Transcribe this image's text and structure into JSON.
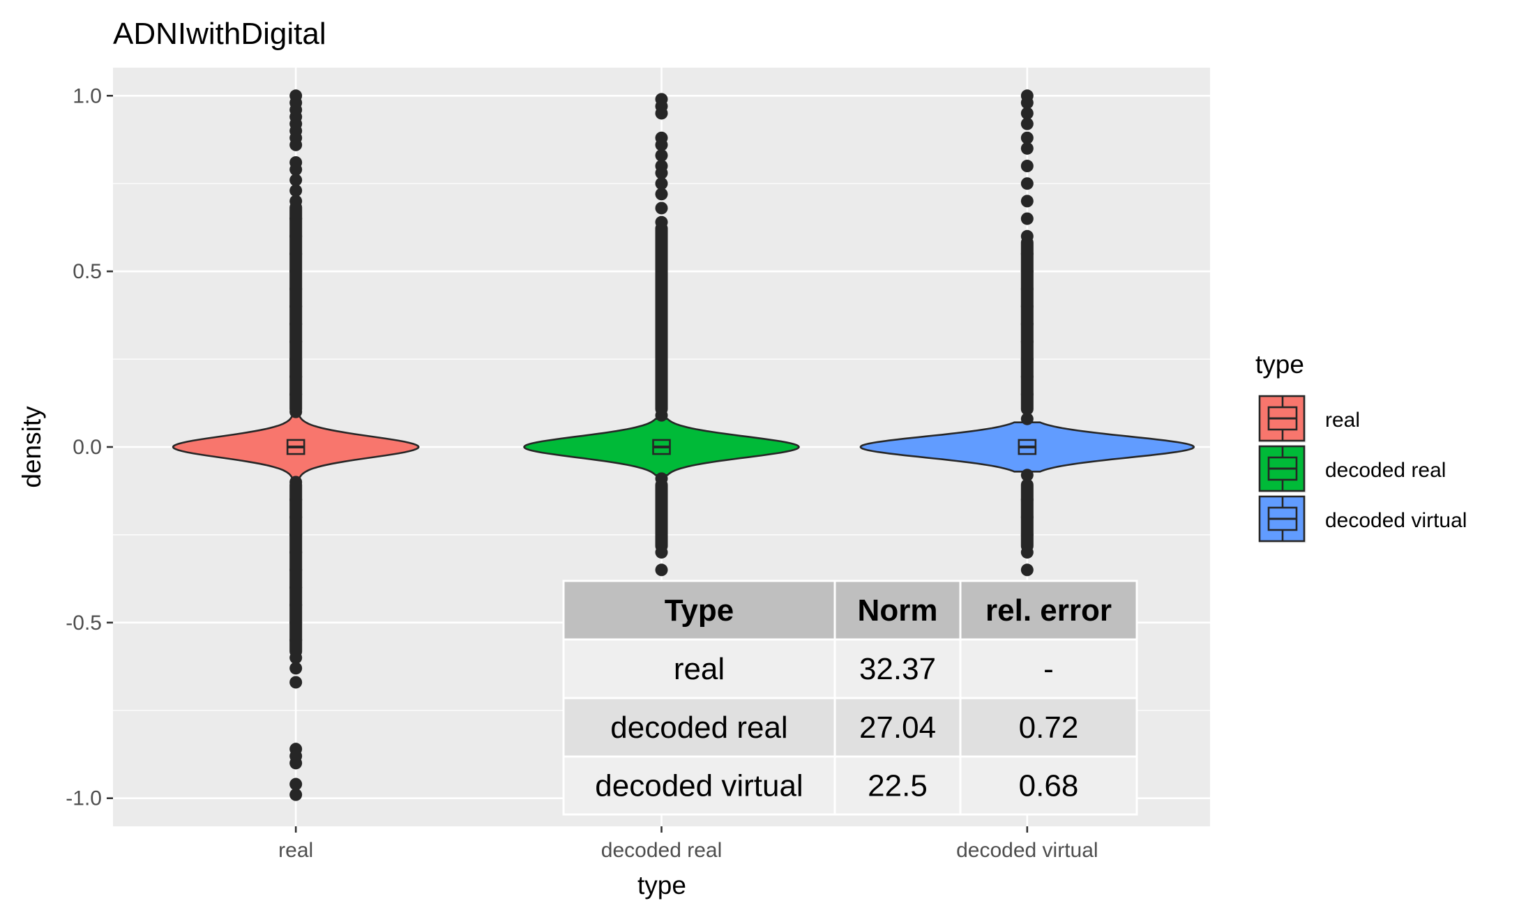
{
  "chart_data": {
    "type": "violin",
    "title": "ADNIwithDigital",
    "xlabel": "type",
    "ylabel": "density",
    "categories": [
      "real",
      "decoded real",
      "decoded virtual"
    ],
    "ylim": [
      -1.08,
      1.08
    ],
    "yticks": [
      -1.0,
      -0.5,
      0.0,
      0.5,
      1.0
    ],
    "ytick_labels": [
      "-1.0",
      "-0.5",
      "0.0",
      "0.5",
      "1.0"
    ],
    "grid": true,
    "legend": {
      "title": "type",
      "placement": "right",
      "entries": [
        {
          "label": "real",
          "color": "#F8766D"
        },
        {
          "label": "decoded real",
          "color": "#00BA38"
        },
        {
          "label": "decoded virtual",
          "color": "#619CFF"
        }
      ]
    },
    "series": [
      {
        "name": "real",
        "color": "#F8766D",
        "median": 0.0,
        "q1": -0.02,
        "q3": 0.02,
        "whisker_low": -0.09,
        "whisker_high": 0.09,
        "violin_halfwidth": 0.33,
        "outliers_high": [
          0.1,
          0.15,
          0.2,
          0.25,
          0.3,
          0.35,
          0.4,
          0.45,
          0.5,
          0.55,
          0.6,
          0.65,
          0.7,
          0.73,
          0.76,
          0.79,
          0.81,
          0.86,
          0.88,
          0.9,
          0.92,
          0.94,
          0.96,
          0.98,
          1.0
        ],
        "outliers_low": [
          -0.1,
          -0.15,
          -0.2,
          -0.25,
          -0.3,
          -0.35,
          -0.4,
          -0.45,
          -0.5,
          -0.55,
          -0.6,
          -0.63,
          -0.67,
          -0.86,
          -0.88,
          -0.9,
          -0.96,
          -0.99
        ]
      },
      {
        "name": "decoded real",
        "color": "#00BA38",
        "median": 0.0,
        "q1": -0.02,
        "q3": 0.02,
        "whisker_low": -0.08,
        "whisker_high": 0.08,
        "violin_halfwidth": 0.37,
        "outliers_high": [
          0.09,
          0.15,
          0.2,
          0.25,
          0.3,
          0.35,
          0.4,
          0.45,
          0.5,
          0.55,
          0.6,
          0.62,
          0.64,
          0.68,
          0.72,
          0.75,
          0.78,
          0.8,
          0.83,
          0.86,
          0.88,
          0.95,
          0.97,
          0.99
        ],
        "outliers_low": [
          -0.09,
          -0.15,
          -0.2,
          -0.25,
          -0.3,
          -0.35,
          -0.4
        ]
      },
      {
        "name": "decoded virtual",
        "color": "#619CFF",
        "median": 0.0,
        "q1": -0.02,
        "q3": 0.02,
        "whisker_low": -0.07,
        "whisker_high": 0.07,
        "violin_halfwidth": 0.45,
        "outliers_high": [
          0.08,
          0.15,
          0.2,
          0.25,
          0.3,
          0.35,
          0.4,
          0.45,
          0.5,
          0.55,
          0.6,
          0.65,
          0.7,
          0.75,
          0.8,
          0.85,
          0.88,
          0.92,
          0.95,
          0.98,
          1.0
        ],
        "outliers_low": [
          -0.08,
          -0.15,
          -0.2,
          -0.25,
          -0.3,
          -0.35,
          -0.4
        ]
      }
    ],
    "table": {
      "headers": [
        "Type",
        "Norm",
        "rel. error"
      ],
      "rows": [
        [
          "real",
          "32.37",
          "-"
        ],
        [
          "decoded real",
          "27.04",
          "0.72"
        ],
        [
          "decoded virtual",
          "22.5",
          "0.68"
        ]
      ]
    }
  }
}
